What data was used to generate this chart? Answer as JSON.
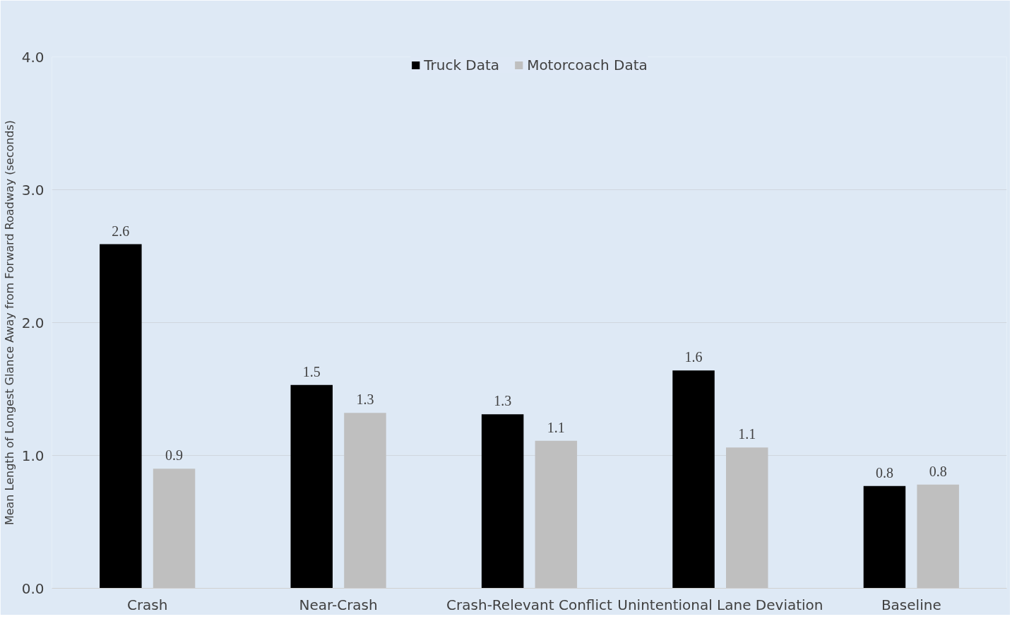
{
  "chart_data": {
    "type": "bar",
    "ylabel": "Mean Length of Longest Glance Away from Forward Roadway (seconds)",
    "categories": [
      "Crash",
      "Near-Crash",
      "Crash-Relevant Conflict",
      "Unintentional Lane Deviation",
      "Baseline"
    ],
    "series": [
      {
        "name": "Truck Data",
        "color": "#000000",
        "values": [
          2.59,
          1.53,
          1.31,
          1.64,
          0.77
        ],
        "value_labels": [
          "2.6",
          "1.5",
          "1.3",
          "1.6",
          "0.8"
        ]
      },
      {
        "name": "Motorcoach Data",
        "color": "#bfbfbf",
        "values": [
          0.9,
          1.32,
          1.11,
          1.06,
          0.78
        ],
        "value_labels": [
          "0.9",
          "1.3",
          "1.1",
          "1.1",
          "0.8"
        ]
      }
    ],
    "ylim": [
      0,
      4
    ],
    "yticks": [
      {
        "value": 0,
        "label": "0.0"
      },
      {
        "value": 1,
        "label": "1.0"
      },
      {
        "value": 2,
        "label": "2.0"
      },
      {
        "value": 3,
        "label": "3.0"
      },
      {
        "value": 4,
        "label": "4.0"
      }
    ],
    "grid": "y",
    "legend": "top"
  }
}
